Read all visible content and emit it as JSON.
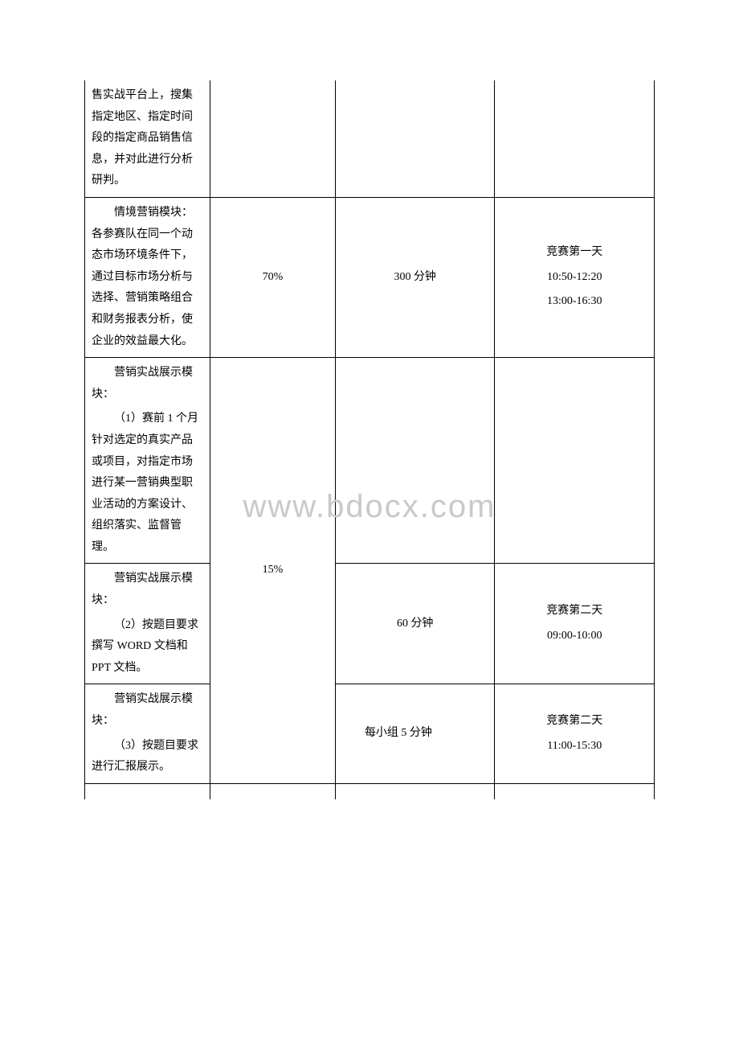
{
  "watermark": "www.bdocx.com",
  "rows": {
    "r0": {
      "col1": "售实战平台上，搜集指定地区、指定时间段的指定商品销售信息，并对此进行分析研判。"
    },
    "r1": {
      "col1_title": "情境营销模块：",
      "col1_body": "各参赛队在同一个动态市场环境条件下，通过目标市场分析与选择、营销策略组合和财务报表分析，使企业的效益最大化。",
      "col2": "70%",
      "col3": "300 分钟",
      "col4_day": "竞赛第一天",
      "col4_time1": "10:50-12:20",
      "col4_time2": "13:00-16:30"
    },
    "r2": {
      "col1_title": "营销实战展示模块：",
      "col1_body": "（1）赛前 1 个月针对选定的真实产品或项目，对指定市场进行某一营销典型职业活动的方案设计、组织落实、监督管理。"
    },
    "r3": {
      "col1_title": "营销实战展示模块：",
      "col1_body": "（2）按题目要求撰写 WORD 文档和 PPT 文档。",
      "col2": "15%",
      "col3": "60 分钟",
      "col4_day": "竞赛第二天",
      "col4_time": "09:00-10:00"
    },
    "r4": {
      "col1_title": "营销实战展示模块：",
      "col1_body": "（3）按题目要求进行汇报展示。",
      "col3": "每小组 5 分钟",
      "col4_day": "竞赛第二天",
      "col4_time": "11:00-15:30"
    }
  }
}
